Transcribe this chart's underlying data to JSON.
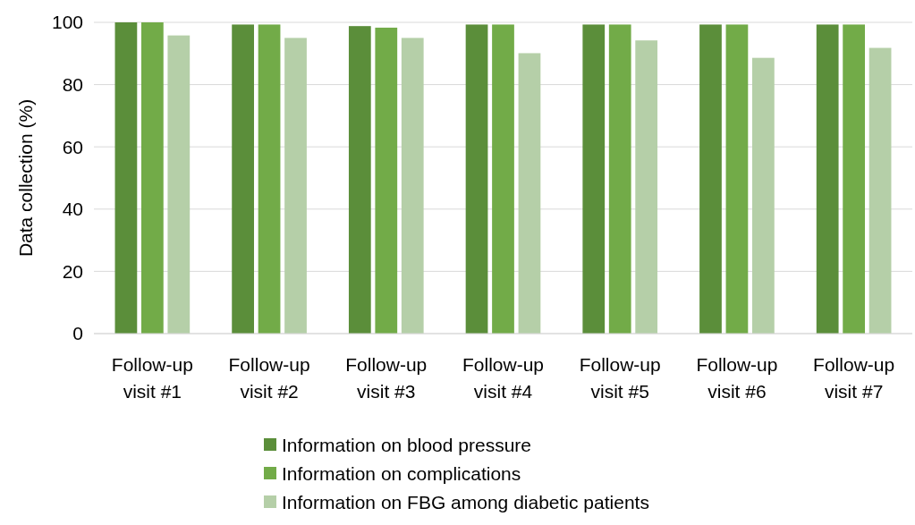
{
  "chart_data": {
    "type": "bar",
    "ylabel": "Data collection (%)",
    "categories": [
      "Follow-up visit #1",
      "Follow-up visit #2",
      "Follow-up visit #3",
      "Follow-up visit #4",
      "Follow-up visit #5",
      "Follow-up visit #6",
      "Follow-up visit #7"
    ],
    "series": [
      {
        "name": "Information on blood pressure",
        "color": "#5b8e3a",
        "values": [
          100,
          99.3,
          98.8,
          99.3,
          99.3,
          99.3,
          99.3
        ]
      },
      {
        "name": "Information on complications",
        "color": "#72ab48",
        "values": [
          100,
          99.3,
          98.3,
          99.3,
          99.3,
          99.3,
          99.3
        ]
      },
      {
        "name": "Information on FBG among diabetic patients",
        "color": "#b5cfa8",
        "values": [
          95.8,
          95.0,
          95.0,
          90.1,
          94.2,
          88.6,
          91.8
        ]
      }
    ],
    "ylim": [
      0,
      100
    ],
    "yticks": [
      0,
      20,
      40,
      60,
      80,
      100
    ],
    "grid": "y",
    "legend": "bottom"
  }
}
